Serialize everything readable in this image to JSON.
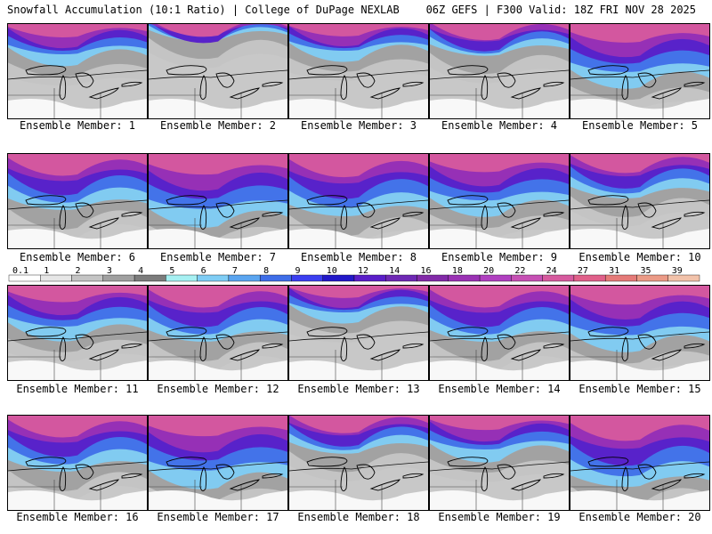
{
  "header": {
    "left": "Snowfall Accumulation (10:1 Ratio) | College of DuPage NEXLAB",
    "right": "06Z GEFS | F300 Valid: 18Z FRI NOV 28 2025"
  },
  "panels": [
    {
      "label": "Ensemble Member: 1",
      "fill": 0.35
    },
    {
      "label": "Ensemble Member: 2",
      "fill": 0.12
    },
    {
      "label": "Ensemble Member: 3",
      "fill": 0.3
    },
    {
      "label": "Ensemble Member: 4",
      "fill": 0.28
    },
    {
      "label": "Ensemble Member: 5",
      "fill": 0.6
    },
    {
      "label": "Ensemble Member: 6",
      "fill": 0.55
    },
    {
      "label": "Ensemble Member: 7",
      "fill": 0.7
    },
    {
      "label": "Ensemble Member: 8",
      "fill": 0.62
    },
    {
      "label": "Ensemble Member: 9",
      "fill": 0.58
    },
    {
      "label": "Ensemble Member: 10",
      "fill": 0.42
    },
    {
      "label": "Ensemble Member: 11",
      "fill": 0.5
    },
    {
      "label": "Ensemble Member: 12",
      "fill": 0.55
    },
    {
      "label": "Ensemble Member: 13",
      "fill": 0.3
    },
    {
      "label": "Ensemble Member: 14",
      "fill": 0.55
    },
    {
      "label": "Ensemble Member: 15",
      "fill": 0.62
    },
    {
      "label": "Ensemble Member: 16",
      "fill": 0.55
    },
    {
      "label": "Ensemble Member: 17",
      "fill": 0.7
    },
    {
      "label": "Ensemble Member: 18",
      "fill": 0.35
    },
    {
      "label": "Ensemble Member: 19",
      "fill": 0.4
    },
    {
      "label": "Ensemble Member: 20",
      "fill": 0.72
    }
  ],
  "colorbar": {
    "labels": [
      "0.1",
      "1",
      "2",
      "3",
      "4",
      "5",
      "6",
      "7",
      "8",
      "9",
      "10",
      "12",
      "14",
      "16",
      "18",
      "20",
      "22",
      "24",
      "27",
      "31",
      "35",
      "39"
    ],
    "colors": [
      "#ffffff",
      "#e6e6e6",
      "#c4c4c4",
      "#a0a0a0",
      "#7c7c7c",
      "#a6f0f2",
      "#7fcdf5",
      "#5ba5f0",
      "#3f6ee8",
      "#3b3ff0",
      "#2218c8",
      "#5a1ec8",
      "#6e28b4",
      "#822aa8",
      "#9a32b4",
      "#b040c0",
      "#c650b4",
      "#d65a9e",
      "#e0608a",
      "#e57a78",
      "#eb9a86",
      "#f2c2aa"
    ]
  }
}
